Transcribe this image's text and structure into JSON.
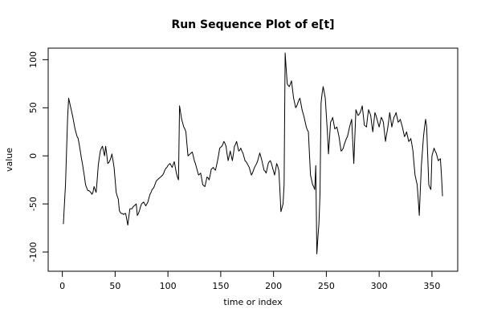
{
  "chart_data": {
    "type": "line",
    "title": "Run Sequence Plot of e[t]",
    "x_label": "time or index",
    "y_label": "value",
    "color": "#000000",
    "xlim": [
      -13.4,
      374.4
    ],
    "ylim": [
      -120,
      112
    ],
    "xticks": [
      0,
      50,
      100,
      150,
      200,
      250,
      300,
      350
    ],
    "yticks": [
      -100,
      -50,
      0,
      50,
      100
    ],
    "x": [
      1,
      2,
      3,
      4,
      5,
      6,
      7,
      8,
      9,
      10,
      11,
      12,
      13,
      14,
      15,
      16,
      17,
      18,
      19,
      20,
      21,
      22,
      23,
      24,
      25,
      26,
      27,
      28,
      29,
      30,
      31,
      32,
      33,
      34,
      35,
      36,
      37,
      38,
      39,
      40,
      41,
      42,
      43,
      44,
      45,
      46,
      47,
      48,
      49,
      50,
      51,
      52,
      53,
      54,
      55,
      56,
      57,
      58,
      59,
      60,
      61,
      62,
      63,
      64,
      65,
      66,
      67,
      68,
      69,
      70,
      71,
      72,
      73,
      74,
      75,
      76,
      77,
      78,
      79,
      80,
      81,
      82,
      83,
      84,
      85,
      86,
      87,
      88,
      89,
      90,
      91,
      92,
      93,
      94,
      95,
      96,
      97,
      98,
      99,
      100,
      101,
      102,
      103,
      104,
      105,
      106,
      107,
      108,
      109,
      110,
      111,
      112,
      113,
      114,
      115,
      116,
      117,
      118,
      119,
      120,
      121,
      122,
      123,
      124,
      125,
      126,
      127,
      128,
      129,
      130,
      131,
      132,
      133,
      134,
      135,
      136,
      137,
      138,
      139,
      140,
      141,
      142,
      143,
      144,
      145,
      146,
      147,
      148,
      149,
      150,
      151,
      152,
      153,
      154,
      155,
      156,
      157,
      158,
      159,
      160,
      161,
      162,
      163,
      164,
      165,
      166,
      167,
      168,
      169,
      170,
      171,
      172,
      173,
      174,
      175,
      176,
      177,
      178,
      179,
      180,
      181,
      182,
      183,
      184,
      185,
      186,
      187,
      188,
      189,
      190,
      191,
      192,
      193,
      194,
      195,
      196,
      197,
      198,
      199,
      200,
      201,
      202,
      203,
      204,
      205,
      206,
      207,
      208,
      209,
      210,
      211,
      212,
      213,
      214,
      215,
      216,
      217,
      218,
      219,
      220,
      221,
      222,
      223,
      224,
      225,
      226,
      227,
      228,
      229,
      230,
      231,
      232,
      233,
      234,
      235,
      236,
      237,
      238,
      239,
      240,
      241,
      242,
      243,
      244,
      245,
      246,
      247,
      248,
      249,
      250,
      251,
      252,
      253,
      254,
      255,
      256,
      257,
      258,
      259,
      260,
      261,
      262,
      263,
      264,
      265,
      266,
      267,
      268,
      269,
      270,
      271,
      272,
      273,
      274,
      275,
      276,
      277,
      278,
      279,
      280,
      281,
      282,
      283,
      284,
      285,
      286,
      287,
      288,
      289,
      290,
      291,
      292,
      293,
      294,
      295,
      296,
      297,
      298,
      299,
      300,
      301,
      302,
      303,
      304,
      305,
      306,
      307,
      308,
      309,
      310,
      311,
      312,
      313,
      314,
      315,
      316,
      317,
      318,
      319,
      320,
      321,
      322,
      323,
      324,
      325,
      326,
      327,
      328,
      329,
      330,
      331,
      332,
      333,
      334,
      335,
      336,
      337,
      338,
      339,
      340,
      341,
      342,
      343,
      344,
      345,
      346,
      347,
      348,
      349,
      350,
      351,
      352,
      353,
      354,
      355,
      356,
      357,
      358,
      359,
      360
    ],
    "values": [
      -71,
      -50,
      -30,
      5,
      40,
      60,
      55,
      50,
      45,
      40,
      34,
      28,
      24,
      20,
      18,
      12,
      5,
      -2,
      -8,
      -15,
      -22,
      -30,
      -33,
      -36,
      -36,
      -37,
      -38,
      -40,
      -38,
      -32,
      -35,
      -38,
      -25,
      -10,
      -2,
      5,
      8,
      10,
      5,
      0,
      10,
      2,
      -8,
      -7,
      -5,
      -2,
      2,
      -5,
      -12,
      -25,
      -38,
      -42,
      -45,
      -57,
      -59,
      -60,
      -60,
      -61,
      -60,
      -60,
      -66,
      -72,
      -63,
      -55,
      -55,
      -55,
      -53,
      -52,
      -51,
      -50,
      -62,
      -60,
      -57,
      -53,
      -50,
      -49,
      -48,
      -50,
      -52,
      -50,
      -48,
      -44,
      -40,
      -38,
      -35,
      -34,
      -32,
      -29,
      -26,
      -25,
      -24,
      -23,
      -22,
      -21,
      -20,
      -18,
      -15,
      -13,
      -12,
      -10,
      -9,
      -8,
      -10,
      -12,
      -9,
      -6,
      -12,
      -18,
      -22,
      -25,
      52,
      45,
      38,
      34,
      30,
      28,
      25,
      12,
      0,
      1,
      2,
      3,
      4,
      0,
      -5,
      -8,
      -12,
      -16,
      -20,
      -19,
      -18,
      -24,
      -30,
      -31,
      -32,
      -27,
      -22,
      -23,
      -25,
      -20,
      -14,
      -13,
      -12,
      -14,
      -15,
      -10,
      -5,
      1,
      8,
      9,
      10,
      12,
      15,
      13,
      10,
      2,
      -5,
      0,
      5,
      0,
      -5,
      2,
      10,
      12,
      15,
      10,
      5,
      6,
      8,
      5,
      3,
      -1,
      -5,
      -6,
      -8,
      -10,
      -12,
      -16,
      -20,
      -18,
      -15,
      -12,
      -10,
      -8,
      -5,
      -1,
      3,
      -1,
      -5,
      -10,
      -15,
      -16,
      -18,
      -13,
      -8,
      -6,
      -5,
      -8,
      -12,
      -16,
      -20,
      -14,
      -8,
      -11,
      -15,
      -35,
      -58,
      -54,
      -50,
      -30,
      107,
      90,
      75,
      73,
      72,
      75,
      78,
      69,
      60,
      55,
      50,
      52,
      55,
      58,
      60,
      54,
      48,
      44,
      40,
      35,
      30,
      27,
      25,
      2,
      -20,
      -25,
      -30,
      -32,
      -35,
      -10,
      -102,
      -85,
      -70,
      -40,
      55,
      65,
      72,
      66,
      60,
      42,
      25,
      2,
      18,
      35,
      37,
      40,
      34,
      28,
      29,
      30,
      25,
      20,
      12,
      5,
      6,
      8,
      12,
      15,
      18,
      20,
      25,
      30,
      34,
      38,
      15,
      -8,
      20,
      48,
      45,
      42,
      43,
      45,
      48,
      52,
      42,
      32,
      31,
      30,
      40,
      48,
      45,
      42,
      33,
      25,
      35,
      45,
      42,
      38,
      34,
      30,
      35,
      40,
      38,
      35,
      25,
      15,
      22,
      28,
      36,
      45,
      38,
      30,
      35,
      40,
      42,
      45,
      40,
      35,
      36,
      38,
      34,
      30,
      25,
      20,
      22,
      25,
      20,
      15,
      16,
      18,
      12,
      5,
      -8,
      -20,
      -25,
      -30,
      -45,
      -62,
      -35,
      -10,
      5,
      20,
      30,
      38,
      30,
      0,
      -30,
      -33,
      -35,
      0,
      4,
      8,
      5,
      3,
      -1,
      -5,
      -4,
      -3,
      -20,
      -42
    ]
  }
}
